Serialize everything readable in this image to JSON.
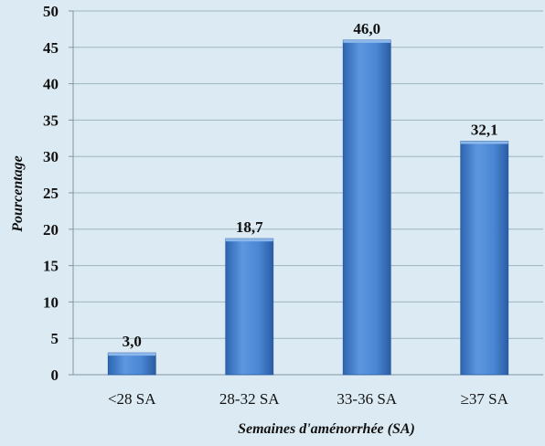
{
  "chart_data": {
    "type": "bar",
    "categories": [
      "<28 SA",
      "28-32 SA",
      "33-36 SA",
      "≥37 SA"
    ],
    "values": [
      3.0,
      18.7,
      46.0,
      32.1
    ],
    "data_labels": [
      "3,0",
      "18,7",
      "46,0",
      "32,1"
    ],
    "title": "",
    "xlabel": "Semaines d'aménorrhée (SA)",
    "ylabel": "Pourcentage",
    "ylim": [
      0,
      50
    ],
    "yticks": [
      0,
      5,
      10,
      15,
      20,
      25,
      30,
      35,
      40,
      45,
      50
    ],
    "grid": true,
    "legend": "none",
    "colors": {
      "bar_light": "#6fa3e0",
      "bar_mid": "#4a86d4",
      "bar_dark": "#2a5fa8",
      "background": "#dcebf3",
      "grid": "#9fb4c2"
    }
  }
}
